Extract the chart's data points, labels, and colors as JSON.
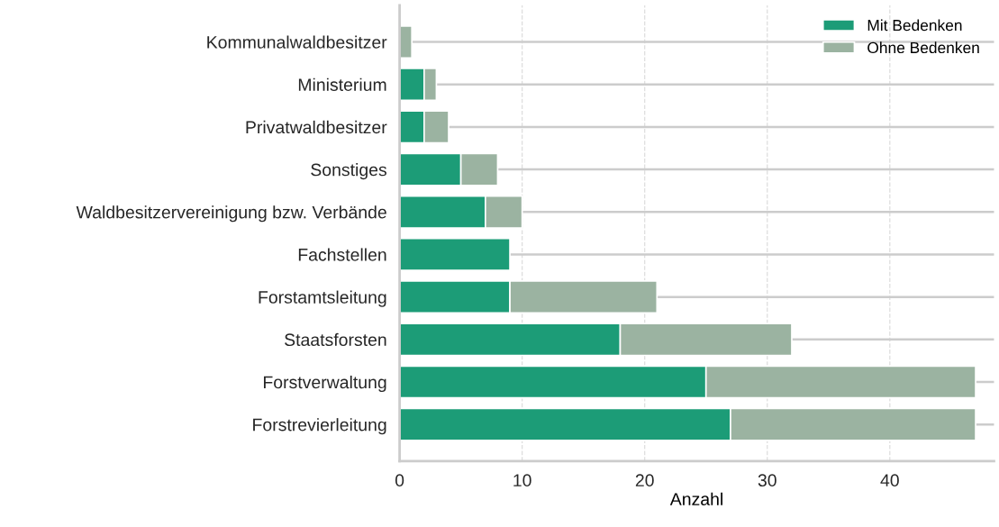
{
  "chart_data": {
    "type": "bar",
    "orientation": "horizontal",
    "stacked": true,
    "categories": [
      "Kommunalwaldbesitzer",
      "Ministerium",
      "Privatwaldbesitzer",
      "Sonstiges",
      "Waldbesitzervereinigung bzw. Verbände",
      "Fachstellen",
      "Forstamtsleitung",
      "Staatsforsten",
      "Forstverwaltung",
      "Forstrevierleitung"
    ],
    "series": [
      {
        "name": "Mit Bedenken",
        "color": "#1c9c77",
        "values": [
          null,
          2,
          2,
          5,
          7,
          9,
          9,
          18,
          25,
          27
        ]
      },
      {
        "name": "Ohne Bedenken",
        "color": "#9bb3a1",
        "values": [
          1,
          1,
          2,
          3,
          3,
          null,
          12,
          14,
          22,
          20
        ]
      }
    ],
    "xlabel": "Anzahl",
    "xlim": [
      0,
      48.5
    ],
    "xticks": [
      0,
      10,
      20,
      30,
      40
    ],
    "grid": true,
    "legend": "top right"
  }
}
